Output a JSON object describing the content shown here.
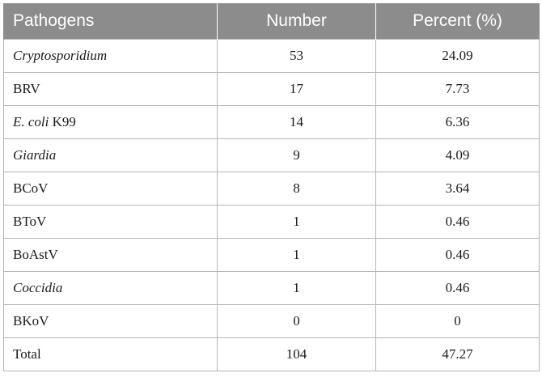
{
  "table": {
    "headers": [
      "Pathogens",
      "Number",
      "Percent (%)"
    ],
    "rows": [
      {
        "name": "Cryptosporidium",
        "name_italic": "Cryptosporidium",
        "name_rest": "",
        "number": "53",
        "percent": "24.09"
      },
      {
        "name": "BRV",
        "name_italic": "",
        "name_rest": "BRV",
        "number": "17",
        "percent": "7.73"
      },
      {
        "name": "E. coli K99",
        "name_italic": "E. coli",
        "name_rest": " K99",
        "number": "14",
        "percent": "6.36"
      },
      {
        "name": "Giardia",
        "name_italic": "Giardia",
        "name_rest": "",
        "number": "9",
        "percent": "4.09"
      },
      {
        "name": "BCoV",
        "name_italic": "",
        "name_rest": "BCoV",
        "number": "8",
        "percent": "3.64"
      },
      {
        "name": "BToV",
        "name_italic": "",
        "name_rest": "BToV",
        "number": "1",
        "percent": "0.46"
      },
      {
        "name": "BoAstV",
        "name_italic": "",
        "name_rest": "BoAstV",
        "number": "1",
        "percent": "0.46"
      },
      {
        "name": "Coccidia",
        "name_italic": "Coccidia",
        "name_rest": "",
        "number": "1",
        "percent": "0.46"
      },
      {
        "name": "BKoV",
        "name_italic": "",
        "name_rest": "BKoV",
        "number": "0",
        "percent": "0"
      },
      {
        "name": "Total",
        "name_italic": "",
        "name_rest": "Total",
        "number": "104",
        "percent": "47.27"
      }
    ]
  },
  "colors": {
    "header_background": "#8c8c8c",
    "header_text": "#ffffff",
    "border": "#b5b5b5"
  }
}
